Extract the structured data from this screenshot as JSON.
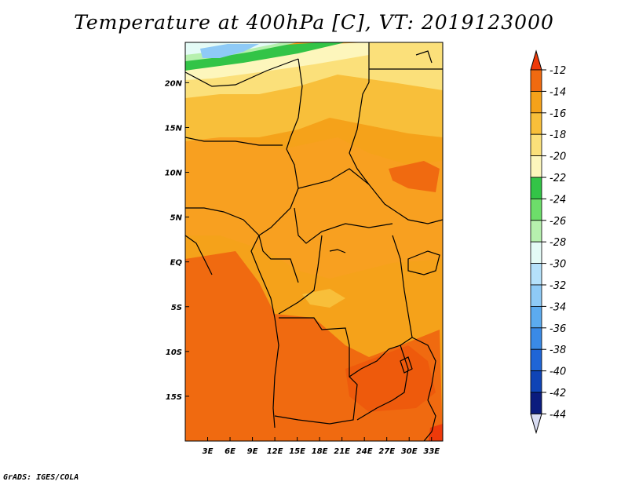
{
  "title": "Temperature at 400hPa [C], VT: 2019123000",
  "footer": "GrADS: IGES/COLA",
  "map": {
    "lon_range": [
      0,
      34.5
    ],
    "lat_range": [
      -20,
      24.5
    ],
    "lon_ticks": [
      "3E",
      "6E",
      "9E",
      "12E",
      "15E",
      "18E",
      "21E",
      "24E",
      "27E",
      "30E",
      "33E"
    ],
    "lat_ticks": [
      "20N",
      "15N",
      "10N",
      "5N",
      "EQ",
      "5S",
      "10S",
      "15S"
    ],
    "lon_tick_values": [
      3,
      6,
      9,
      12,
      15,
      18,
      21,
      24,
      27,
      30,
      33
    ],
    "lat_tick_values": [
      20,
      15,
      10,
      5,
      0,
      -5,
      -10,
      -15
    ]
  },
  "colorbar": {
    "labels": [
      "-12",
      "-14",
      "-16",
      "-18",
      "-20",
      "-22",
      "-24",
      "-26",
      "-28",
      "-30",
      "-32",
      "-34",
      "-36",
      "-38",
      "-40",
      "-42",
      "-44"
    ],
    "colors": [
      "#ee3a0a",
      "#f06a10",
      "#f5a21a",
      "#f8bf3a",
      "#fbe07a",
      "#fdf6bc",
      "#33c447",
      "#6dde6a",
      "#b6f0ae",
      "#e4fbf6",
      "#b5e1fb",
      "#8ecaf6",
      "#5cabef",
      "#3a8ae6",
      "#1f65d6",
      "#0f44b6",
      "#0b1c7e",
      "#d8dcf2"
    ]
  }
}
